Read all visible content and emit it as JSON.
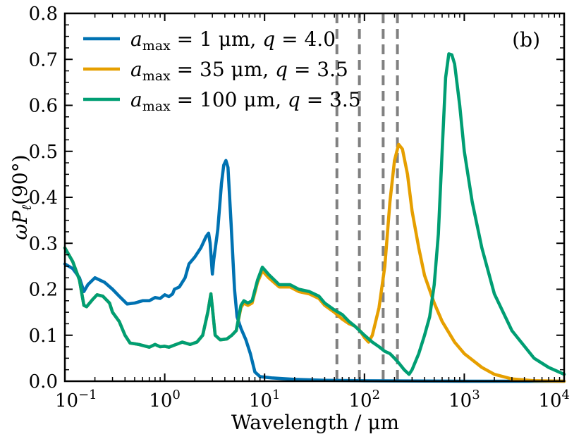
{
  "chart_data": {
    "type": "line",
    "title": "",
    "panel_label": "(b)",
    "xlabel": "Wavelength / μm",
    "ylabel": "ωP_ℓ(90°)",
    "x_scale": "log",
    "xlim": [
      0.1,
      10000
    ],
    "ylim": [
      0.0,
      0.8
    ],
    "x_ticks": [
      {
        "value": 0.1,
        "base": "10",
        "exp": "−1"
      },
      {
        "value": 1,
        "base": "10",
        "exp": "0"
      },
      {
        "value": 10,
        "base": "10",
        "exp": "1"
      },
      {
        "value": 100,
        "base": "10",
        "exp": "2"
      },
      {
        "value": 1000,
        "base": "10",
        "exp": "3"
      },
      {
        "value": 10000,
        "base": "10",
        "exp": "4"
      }
    ],
    "y_ticks": [
      {
        "value": 0.0,
        "label": "0.0"
      },
      {
        "value": 0.1,
        "label": "0.1"
      },
      {
        "value": 0.2,
        "label": "0.2"
      },
      {
        "value": 0.3,
        "label": "0.3"
      },
      {
        "value": 0.4,
        "label": "0.4"
      },
      {
        "value": 0.5,
        "label": "0.5"
      },
      {
        "value": 0.6,
        "label": "0.6"
      },
      {
        "value": 0.7,
        "label": "0.7"
      },
      {
        "value": 0.8,
        "label": "0.8"
      }
    ],
    "legend_position": "top-left",
    "vlines": {
      "x": [
        53,
        89,
        154,
        214
      ],
      "color": "#808080",
      "style": "dashed"
    },
    "series": [
      {
        "name": "a_max = 1 μm, q = 4.0",
        "legend": {
          "a_sub": "max",
          "rest": " = 1 μm, ",
          "q": "q",
          "qval": " = 4.0"
        },
        "color": "#0072B2",
        "points": [
          [
            0.1,
            0.255
          ],
          [
            0.12,
            0.245
          ],
          [
            0.14,
            0.225
          ],
          [
            0.155,
            0.195
          ],
          [
            0.17,
            0.21
          ],
          [
            0.2,
            0.225
          ],
          [
            0.25,
            0.215
          ],
          [
            0.3,
            0.2
          ],
          [
            0.35,
            0.185
          ],
          [
            0.42,
            0.168
          ],
          [
            0.5,
            0.17
          ],
          [
            0.6,
            0.175
          ],
          [
            0.7,
            0.175
          ],
          [
            0.8,
            0.182
          ],
          [
            0.9,
            0.18
          ],
          [
            1.0,
            0.188
          ],
          [
            1.1,
            0.184
          ],
          [
            1.2,
            0.19
          ],
          [
            1.25,
            0.2
          ],
          [
            1.4,
            0.205
          ],
          [
            1.6,
            0.225
          ],
          [
            1.75,
            0.255
          ],
          [
            2.0,
            0.27
          ],
          [
            2.3,
            0.29
          ],
          [
            2.6,
            0.315
          ],
          [
            2.75,
            0.322
          ],
          [
            2.85,
            0.3
          ],
          [
            3.0,
            0.233
          ],
          [
            3.1,
            0.265
          ],
          [
            3.4,
            0.33
          ],
          [
            3.7,
            0.43
          ],
          [
            3.9,
            0.47
          ],
          [
            4.1,
            0.48
          ],
          [
            4.3,
            0.465
          ],
          [
            4.6,
            0.35
          ],
          [
            5.0,
            0.2
          ],
          [
            5.3,
            0.14
          ],
          [
            5.8,
            0.115
          ],
          [
            6.5,
            0.09
          ],
          [
            7.2,
            0.06
          ],
          [
            8.0,
            0.02
          ],
          [
            9,
            0.01
          ],
          [
            12,
            0.007
          ],
          [
            20,
            0.004
          ],
          [
            40,
            0.002
          ],
          [
            100,
            0.001
          ],
          [
            1000,
            0.0
          ],
          [
            10000,
            0.0
          ]
        ]
      },
      {
        "name": "a_max = 35 μm, q = 3.5",
        "legend": {
          "a_sub": "max",
          "rest": " = 35 μm, ",
          "q": "q",
          "qval": " = 3.5"
        },
        "color": "#E69F00",
        "points": [
          [
            0.1,
            0.29
          ],
          [
            0.12,
            0.26
          ],
          [
            0.14,
            0.22
          ],
          [
            0.155,
            0.165
          ],
          [
            0.165,
            0.162
          ],
          [
            0.19,
            0.178
          ],
          [
            0.21,
            0.188
          ],
          [
            0.24,
            0.185
          ],
          [
            0.28,
            0.17
          ],
          [
            0.3,
            0.15
          ],
          [
            0.35,
            0.13
          ],
          [
            0.4,
            0.1
          ],
          [
            0.45,
            0.083
          ],
          [
            0.55,
            0.08
          ],
          [
            0.7,
            0.074
          ],
          [
            0.8,
            0.08
          ],
          [
            0.9,
            0.075
          ],
          [
            1.0,
            0.076
          ],
          [
            1.1,
            0.074
          ],
          [
            1.3,
            0.08
          ],
          [
            1.5,
            0.085
          ],
          [
            1.8,
            0.08
          ],
          [
            2.1,
            0.085
          ],
          [
            2.4,
            0.1
          ],
          [
            2.7,
            0.15
          ],
          [
            2.9,
            0.19
          ],
          [
            3.0,
            0.16
          ],
          [
            3.2,
            0.1
          ],
          [
            3.6,
            0.09
          ],
          [
            4.2,
            0.092
          ],
          [
            4.7,
            0.1
          ],
          [
            5.2,
            0.11
          ],
          [
            5.8,
            0.16
          ],
          [
            6.2,
            0.17
          ],
          [
            6.8,
            0.165
          ],
          [
            7.5,
            0.17
          ],
          [
            8.5,
            0.215
          ],
          [
            9.5,
            0.24
          ],
          [
            11,
            0.225
          ],
          [
            14,
            0.205
          ],
          [
            18,
            0.205
          ],
          [
            22,
            0.195
          ],
          [
            28,
            0.19
          ],
          [
            35,
            0.18
          ],
          [
            40,
            0.165
          ],
          [
            50,
            0.15
          ],
          [
            60,
            0.135
          ],
          [
            70,
            0.125
          ],
          [
            80,
            0.12
          ],
          [
            90,
            0.11
          ],
          [
            100,
            0.095
          ],
          [
            110,
            0.085
          ],
          [
            120,
            0.1
          ],
          [
            140,
            0.16
          ],
          [
            160,
            0.25
          ],
          [
            180,
            0.39
          ],
          [
            200,
            0.48
          ],
          [
            220,
            0.515
          ],
          [
            240,
            0.505
          ],
          [
            270,
            0.45
          ],
          [
            300,
            0.37
          ],
          [
            350,
            0.29
          ],
          [
            400,
            0.23
          ],
          [
            500,
            0.17
          ],
          [
            600,
            0.13
          ],
          [
            800,
            0.085
          ],
          [
            1000,
            0.06
          ],
          [
            1500,
            0.03
          ],
          [
            2000,
            0.015
          ],
          [
            3000,
            0.005
          ],
          [
            5000,
            0.001
          ],
          [
            10000,
            0.0
          ]
        ]
      },
      {
        "name": "a_max = 100 μm, q = 3.5",
        "legend": {
          "a_sub": "max",
          "rest": " = 100 μm, ",
          "q": "q",
          "qval": " = 3.5"
        },
        "color": "#009E73",
        "points": [
          [
            0.1,
            0.29
          ],
          [
            0.12,
            0.26
          ],
          [
            0.14,
            0.22
          ],
          [
            0.155,
            0.165
          ],
          [
            0.165,
            0.162
          ],
          [
            0.19,
            0.178
          ],
          [
            0.21,
            0.188
          ],
          [
            0.24,
            0.185
          ],
          [
            0.28,
            0.17
          ],
          [
            0.3,
            0.15
          ],
          [
            0.35,
            0.13
          ],
          [
            0.4,
            0.1
          ],
          [
            0.45,
            0.083
          ],
          [
            0.55,
            0.08
          ],
          [
            0.7,
            0.074
          ],
          [
            0.8,
            0.08
          ],
          [
            0.9,
            0.075
          ],
          [
            1.0,
            0.076
          ],
          [
            1.1,
            0.074
          ],
          [
            1.3,
            0.08
          ],
          [
            1.5,
            0.085
          ],
          [
            1.8,
            0.08
          ],
          [
            2.1,
            0.085
          ],
          [
            2.4,
            0.1
          ],
          [
            2.7,
            0.15
          ],
          [
            2.9,
            0.19
          ],
          [
            3.0,
            0.16
          ],
          [
            3.2,
            0.1
          ],
          [
            3.6,
            0.09
          ],
          [
            4.2,
            0.092
          ],
          [
            4.7,
            0.1
          ],
          [
            5.2,
            0.11
          ],
          [
            5.8,
            0.165
          ],
          [
            6.2,
            0.175
          ],
          [
            6.8,
            0.17
          ],
          [
            7.5,
            0.175
          ],
          [
            8.5,
            0.22
          ],
          [
            9.5,
            0.248
          ],
          [
            11,
            0.232
          ],
          [
            14,
            0.21
          ],
          [
            18,
            0.21
          ],
          [
            22,
            0.2
          ],
          [
            28,
            0.195
          ],
          [
            35,
            0.185
          ],
          [
            40,
            0.17
          ],
          [
            50,
            0.155
          ],
          [
            60,
            0.145
          ],
          [
            70,
            0.13
          ],
          [
            80,
            0.12
          ],
          [
            100,
            0.1
          ],
          [
            120,
            0.085
          ],
          [
            140,
            0.075
          ],
          [
            160,
            0.065
          ],
          [
            180,
            0.06
          ],
          [
            200,
            0.05
          ],
          [
            220,
            0.04
          ],
          [
            250,
            0.025
          ],
          [
            280,
            0.015
          ],
          [
            300,
            0.025
          ],
          [
            350,
            0.06
          ],
          [
            400,
            0.1
          ],
          [
            450,
            0.14
          ],
          [
            500,
            0.21
          ],
          [
            550,
            0.32
          ],
          [
            600,
            0.5
          ],
          [
            650,
            0.66
          ],
          [
            700,
            0.712
          ],
          [
            750,
            0.71
          ],
          [
            800,
            0.69
          ],
          [
            900,
            0.6
          ],
          [
            1000,
            0.5
          ],
          [
            1200,
            0.39
          ],
          [
            1500,
            0.29
          ],
          [
            2000,
            0.19
          ],
          [
            3000,
            0.11
          ],
          [
            5000,
            0.05
          ],
          [
            7000,
            0.03
          ],
          [
            10000,
            0.015
          ]
        ]
      }
    ]
  }
}
